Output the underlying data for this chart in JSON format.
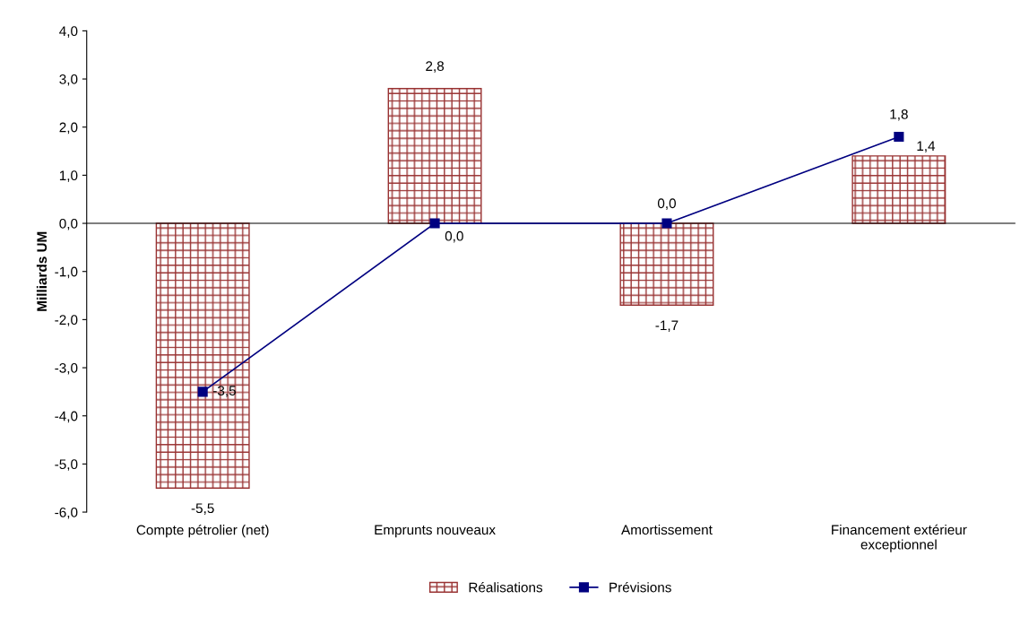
{
  "chart_data": {
    "type": "bar",
    "ylabel": "Milliards UM",
    "categories": [
      "Compte pétrolier (net)",
      "Emprunts nouveaux",
      "Amortissement",
      "Financement extérieur\nexceptionnel"
    ],
    "series": [
      {
        "name": "Réalisations",
        "color": "#993333",
        "values": [
          -5.5,
          2.8,
          -1.7,
          1.4
        ],
        "value_labels": [
          "-5,5",
          "2,8",
          "-1,7",
          "1,4"
        ]
      },
      {
        "name": "Prévisions",
        "type": "line",
        "color": "#000080",
        "marker": "square",
        "values": [
          -3.5,
          0.0,
          0.0,
          1.8
        ],
        "value_labels": [
          "-3,5",
          "0,0",
          "0,0",
          "1,8"
        ]
      }
    ],
    "ylim": [
      -6,
      4
    ],
    "yticks": [
      {
        "value": -6,
        "label": "-6,0"
      },
      {
        "value": -5,
        "label": "-5,0"
      },
      {
        "value": -4,
        "label": "-4,0"
      },
      {
        "value": -3,
        "label": "-3,0"
      },
      {
        "value": -2,
        "label": "-2,0"
      },
      {
        "value": -1,
        "label": "-1,0"
      },
      {
        "value": 0,
        "label": "0,0"
      },
      {
        "value": 1,
        "label": "1,0"
      },
      {
        "value": 2,
        "label": "2,0"
      },
      {
        "value": 3,
        "label": "3,0"
      },
      {
        "value": 4,
        "label": "4,0"
      }
    ],
    "legend": "bottom"
  }
}
